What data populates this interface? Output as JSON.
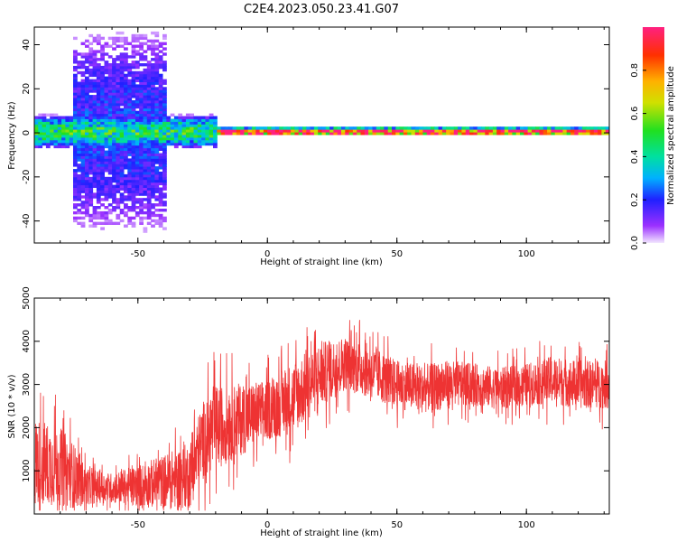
{
  "figure": {
    "title": "C2E4.2023.050.23.41.G07"
  },
  "chart_data": [
    {
      "type": "heatmap",
      "xlabel": "Height of straight line (km)",
      "ylabel": "Frequency (Hz)",
      "xlim": [
        -90,
        132
      ],
      "ylim": [
        -50,
        48
      ],
      "x_ticks": [
        -50,
        0,
        50,
        100
      ],
      "y_ticks": [
        -40,
        -20,
        0,
        20,
        40
      ],
      "colormap": "rainbow",
      "colorbar": {
        "label": "Normalized spectral amplitude",
        "range": [
          0.0,
          1.0
        ],
        "ticks": [
          "0.0",
          "0.2",
          "0.4",
          "0.6",
          "0.8"
        ],
        "tick_values": [
          0.0,
          0.2,
          0.4,
          0.6,
          0.8
        ]
      },
      "features": [
        {
          "x_range": [
            -90,
            -20
          ],
          "center_hz": 0,
          "half_width_hz": 8,
          "peak_amplitude": 0.45
        },
        {
          "x_range": [
            -75,
            -40
          ],
          "center_hz": 0,
          "half_width_hz": 48,
          "peak_amplitude": 0.2
        },
        {
          "x_range": [
            -20,
            132
          ],
          "center_hz": 0,
          "half_width_hz": 2,
          "peak_amplitude": 0.95
        }
      ]
    },
    {
      "type": "line",
      "xlabel": "Height of straight line (km)",
      "ylabel": "SNR (10 * v/v)",
      "xlim": [
        -90,
        132
      ],
      "ylim": [
        0,
        5000
      ],
      "x_ticks": [
        -50,
        0,
        50,
        100
      ],
      "y_ticks": [
        1000,
        2000,
        3000,
        4000,
        5000
      ],
      "color": "#ee3333",
      "envelope": {
        "x": [
          -90,
          -80,
          -75,
          -70,
          -60,
          -50,
          -40,
          -30,
          -25,
          -20,
          -10,
          0,
          10,
          20,
          30,
          40,
          50,
          60,
          70,
          80,
          90,
          100,
          110,
          120,
          132
        ],
        "mean": [
          1200,
          1100,
          900,
          650,
          600,
          650,
          750,
          900,
          1700,
          2000,
          2200,
          2400,
          2700,
          3200,
          3500,
          3300,
          3000,
          2900,
          3000,
          3000,
          2900,
          3000,
          3100,
          3000,
          3000
        ],
        "spread": [
          1500,
          1300,
          1100,
          600,
          500,
          700,
          900,
          1100,
          1300,
          1400,
          1200,
          1000,
          1200,
          1100,
          900,
          900,
          800,
          800,
          800,
          700,
          700,
          700,
          800,
          800,
          800
        ]
      }
    }
  ]
}
